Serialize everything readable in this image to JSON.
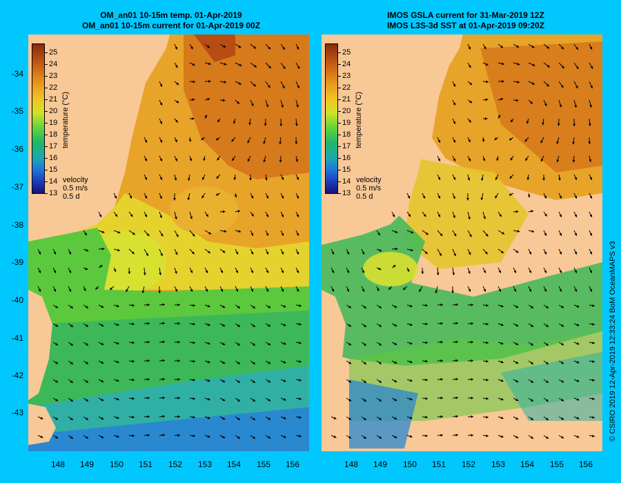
{
  "left_panel": {
    "title_line1": "OM_an01 10-15m temp. 01-Apr-2019",
    "title_line2": "OM_an01 10-15m current for 01-Apr-2019 00Z"
  },
  "right_panel": {
    "title_line1": "IMOS GSLA current for 31-Mar-2019 12Z",
    "title_line2": "IMOS L3S-3d SST at 01-Apr-2019 09:20Z"
  },
  "colorbar": {
    "label": "temperature (°C)",
    "ticks": [
      "25",
      "24",
      "23",
      "22",
      "21",
      "20",
      "19",
      "18",
      "17",
      "16",
      "15",
      "14",
      "13"
    ]
  },
  "velocity_key": {
    "title": "velocity",
    "speed": "0.5 m/s",
    "duration": "0.5 d"
  },
  "axes": {
    "y_ticks": [
      "-34",
      "-35",
      "-36",
      "-37",
      "-38",
      "-39",
      "-40",
      "-41",
      "-42",
      "-43"
    ],
    "x_ticks": [
      "148",
      "149",
      "150",
      "151",
      "152",
      "153",
      "154",
      "155",
      "156"
    ]
  },
  "credit": "© CSIRO 2019   12-Apr-2019 12:33:24 BoM OceanMAPS v3",
  "colors": {
    "background": "#00c8ff",
    "land": "#f8c896"
  }
}
